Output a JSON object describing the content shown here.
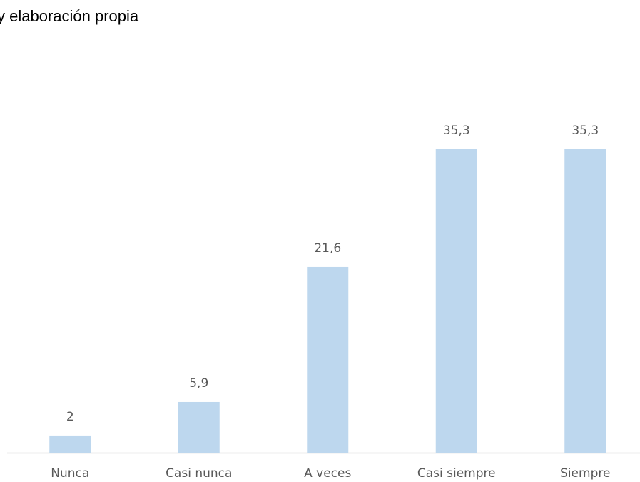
{
  "chart_data": {
    "type": "bar",
    "title": "y elaboración propia",
    "categories": [
      "Nunca",
      "Casi nunca",
      "A veces",
      "Casi siempre",
      "Siempre"
    ],
    "values": [
      2,
      5.9,
      21.6,
      35.3,
      35.3
    ],
    "value_labels": [
      "2",
      "5,9",
      "21,6",
      "35,3",
      "35,3"
    ],
    "color": "#bdd7ee"
  }
}
